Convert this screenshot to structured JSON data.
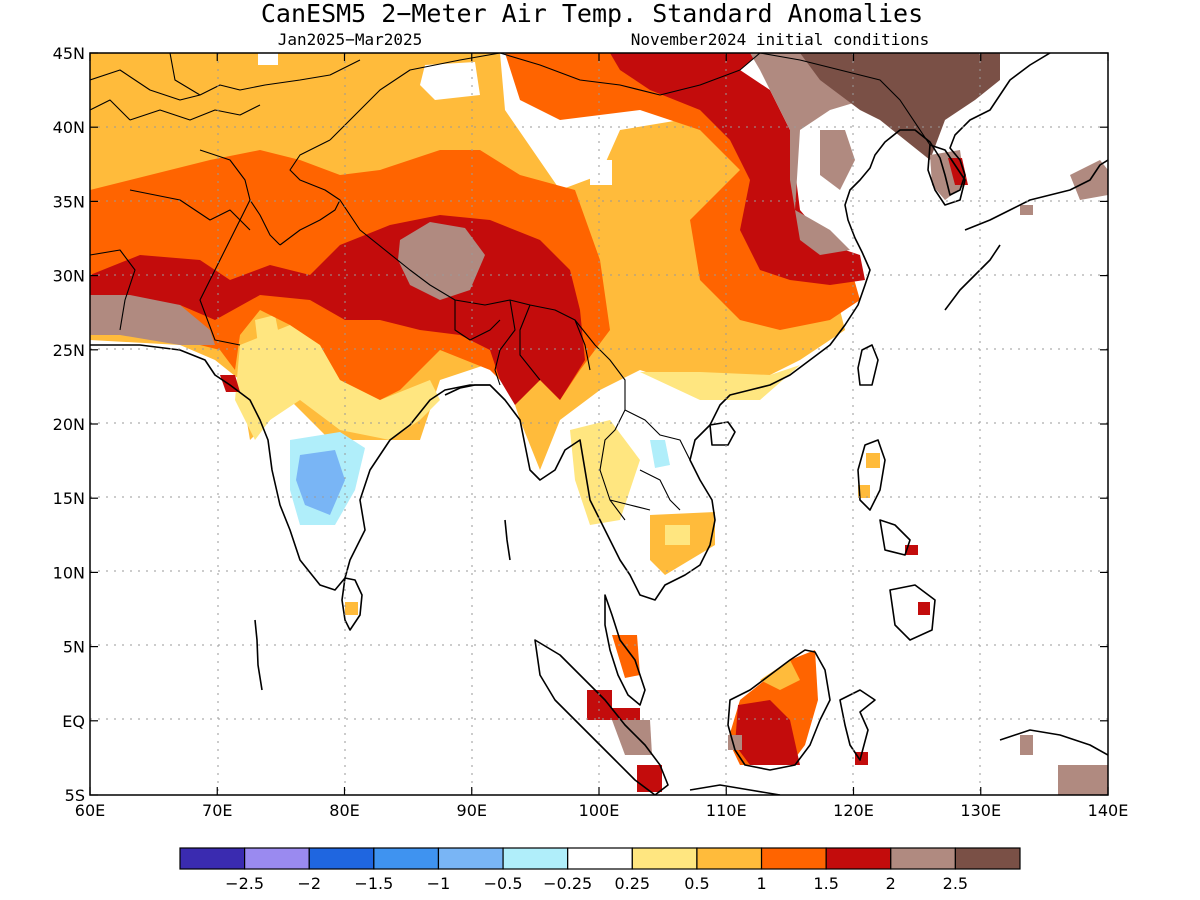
{
  "title": "CanESM5 2−Meter Air Temp. Standard Anomalies",
  "subtitle_left": "Jan2025−Mar2025",
  "subtitle_right": "November2024 initial conditions",
  "lon_labels": [
    "60E",
    "70E",
    "80E",
    "90E",
    "100E",
    "110E",
    "120E",
    "130E",
    "140E"
  ],
  "lat_labels": [
    "45N",
    "40N",
    "35N",
    "30N",
    "25N",
    "20N",
    "15N",
    "10N",
    "5N",
    "EQ",
    "5S"
  ],
  "colorbar": {
    "colors": [
      "#3a2bb0",
      "#9a8af0",
      "#1f66e0",
      "#3f93f0",
      "#79b5f5",
      "#b0eefa",
      "#ffffff",
      "#ffe680",
      "#ffbb3b",
      "#ff6400",
      "#c30c0c",
      "#b08a80",
      "#7a5046"
    ],
    "labels": [
      "−2.5",
      "−2",
      "−1.5",
      "−1",
      "−0.5",
      "−0.25",
      "0.25",
      "0.5",
      "1",
      "1.5",
      "2",
      "2.5"
    ]
  }
}
